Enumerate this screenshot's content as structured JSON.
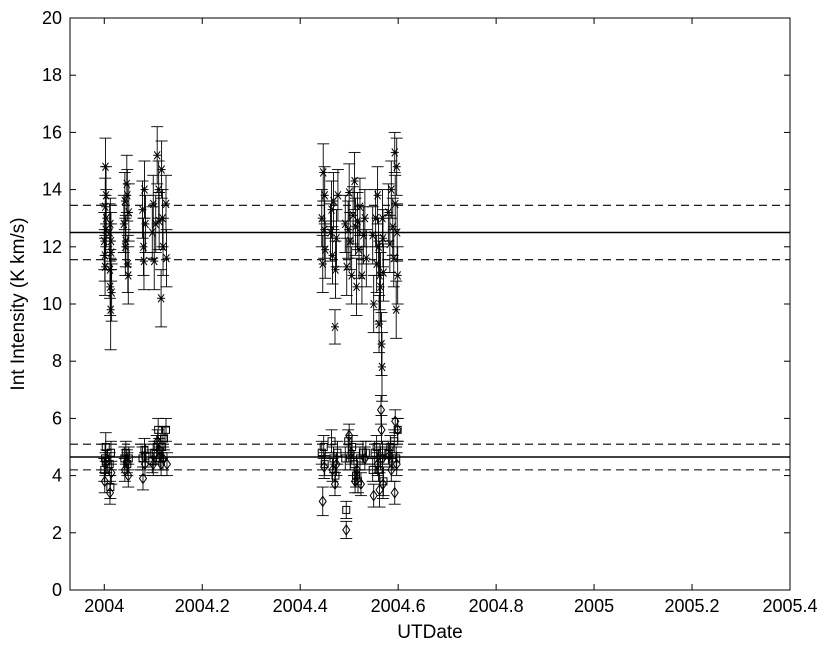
{
  "chart_data": {
    "type": "scatter",
    "title": "",
    "xlabel": "UTDate",
    "ylabel": "Int Intensity (K km/s)",
    "xlim": [
      2003.93,
      2005.4
    ],
    "ylim": [
      0,
      20
    ],
    "xticks": [
      2004,
      2004.2,
      2004.4,
      2004.6,
      2004.8,
      2005,
      2005.2,
      2005.4
    ],
    "xtick_labels": [
      "2004",
      "2004.2",
      "2004.4",
      "2004.6",
      "2004.8",
      "2005",
      "2005.2",
      "2005.4"
    ],
    "yticks": [
      0,
      2,
      4,
      6,
      8,
      10,
      12,
      14,
      16,
      18,
      20
    ],
    "ytick_labels": [
      "0",
      "2",
      "4",
      "6",
      "8",
      "10",
      "12",
      "14",
      "16",
      "18",
      "20"
    ],
    "grid": false,
    "legend": "none",
    "reference_lines": [
      {
        "group": "upper",
        "style": "solid",
        "y": 12.5
      },
      {
        "group": "upper",
        "style": "dashed",
        "y": 13.45
      },
      {
        "group": "upper",
        "style": "dashed",
        "y": 11.55
      },
      {
        "group": "lower",
        "style": "solid",
        "y": 4.65
      },
      {
        "group": "lower",
        "style": "dashed",
        "y": 5.1
      },
      {
        "group": "lower",
        "style": "dashed",
        "y": 4.2
      }
    ],
    "series": [
      {
        "marker": "asterisk",
        "points": [
          [
            1.0,
            12.2,
            1.0
          ],
          [
            1.1,
            13.4,
            1.0
          ],
          [
            1.12,
            14.8,
            1.0
          ],
          [
            1.05,
            11.7,
            0.9
          ],
          [
            1.2,
            13.0,
            1.0
          ],
          [
            1.15,
            12.6,
            0.9
          ],
          [
            1.08,
            11.3,
            1.0
          ],
          [
            1.18,
            13.8,
            1.0
          ],
          [
            1.55,
            12.5,
            1.0
          ],
          [
            1.6,
            10.6,
            1.0
          ],
          [
            1.65,
            9.8,
            1.4
          ],
          [
            1.7,
            11.8,
            1.0
          ],
          [
            1.62,
            12.8,
            0.9
          ],
          [
            1.75,
            10.4,
            1.0
          ],
          [
            1.58,
            11.2,
            1.0
          ],
          [
            1.68,
            12.2,
            1.0
          ],
          [
            3.0,
            12.8,
            1.0
          ],
          [
            3.1,
            13.6,
            1.0
          ],
          [
            3.2,
            12.2,
            0.9
          ],
          [
            3.3,
            14.2,
            1.0
          ],
          [
            3.4,
            11.4,
            1.0
          ],
          [
            3.5,
            13.2,
            1.0
          ],
          [
            3.15,
            12.0,
            1.0
          ],
          [
            3.35,
            13.8,
            0.9
          ],
          [
            3.45,
            11.0,
            1.0
          ],
          [
            4.9,
            13.3,
            1.0
          ],
          [
            5.0,
            12.0,
            1.0
          ],
          [
            5.1,
            14.0,
            1.0
          ],
          [
            5.05,
            11.5,
            1.0
          ],
          [
            5.2,
            12.8,
            1.0
          ],
          [
            5.9,
            12.5,
            0.9
          ],
          [
            6.0,
            13.5,
            1.0
          ],
          [
            6.1,
            11.5,
            1.0
          ],
          [
            6.25,
            12.8,
            1.0
          ],
          [
            6.4,
            15.2,
            1.0
          ],
          [
            6.55,
            14.0,
            1.0
          ],
          [
            6.6,
            12.9,
            1.0
          ],
          [
            6.8,
            10.2,
            1.0
          ],
          [
            6.85,
            14.7,
            1.0
          ],
          [
            6.95,
            13.0,
            1.0
          ],
          [
            7.0,
            12.0,
            1.0
          ],
          [
            7.3,
            13.5,
            1.0
          ],
          [
            7.35,
            11.6,
            1.0
          ],
          [
            23.2,
            13.0,
            1.0
          ],
          [
            23.35,
            14.6,
            1.0
          ],
          [
            23.3,
            11.4,
            1.0
          ],
          [
            23.45,
            12.6,
            1.0
          ],
          [
            23.5,
            13.8,
            1.0
          ],
          [
            23.55,
            11.9,
            1.0
          ],
          [
            24.1,
            12.5,
            1.0
          ],
          [
            24.2,
            13.3,
            1.0
          ],
          [
            24.3,
            11.7,
            1.0
          ],
          [
            24.4,
            13.6,
            1.0
          ],
          [
            24.55,
            9.2,
            0.6
          ],
          [
            24.6,
            11.2,
            1.0
          ],
          [
            24.7,
            12.3,
            1.0
          ],
          [
            24.85,
            13.8,
            0.9
          ],
          [
            25.6,
            12.8,
            1.0
          ],
          [
            25.75,
            11.3,
            1.0
          ],
          [
            25.9,
            12.6,
            1.0
          ],
          [
            26.0,
            13.9,
            1.0
          ],
          [
            26.1,
            12.2,
            1.0
          ],
          [
            26.25,
            11.0,
            1.0
          ],
          [
            26.4,
            13.1,
            1.0
          ],
          [
            26.55,
            14.3,
            1.0
          ],
          [
            26.65,
            12.7,
            1.0
          ],
          [
            26.75,
            10.6,
            1.0
          ],
          [
            26.85,
            12.9,
            1.0
          ],
          [
            27.0,
            11.9,
            1.0
          ],
          [
            27.1,
            13.4,
            1.0
          ],
          [
            27.3,
            11.0,
            1.0
          ],
          [
            27.45,
            12.4,
            1.0
          ],
          [
            27.6,
            13.0,
            1.0
          ],
          [
            27.75,
            11.6,
            1.0
          ],
          [
            28.4,
            12.4,
            1.0
          ],
          [
            28.5,
            10.0,
            1.0
          ],
          [
            28.7,
            13.0,
            1.0
          ],
          [
            28.8,
            11.4,
            1.0
          ],
          [
            28.9,
            13.8,
            1.0
          ],
          [
            29.0,
            12.0,
            1.0
          ],
          [
            29.05,
            9.3,
            1.0
          ],
          [
            29.1,
            11.0,
            1.2
          ],
          [
            29.2,
            10.6,
            1.2
          ],
          [
            29.3,
            8.6,
            1.1
          ],
          [
            29.35,
            7.8,
            1.2
          ],
          [
            29.4,
            13.0,
            1.0
          ],
          [
            29.45,
            12.3,
            1.0
          ],
          [
            29.5,
            11.1,
            1.0
          ],
          [
            30.0,
            13.2,
            1.0
          ],
          [
            30.15,
            12.1,
            1.0
          ],
          [
            30.3,
            14.0,
            1.0
          ],
          [
            30.45,
            12.7,
            1.0
          ],
          [
            30.55,
            11.6,
            1.0
          ],
          [
            30.65,
            15.3,
            0.7
          ],
          [
            30.7,
            13.5,
            1.0
          ],
          [
            30.8,
            9.8,
            1.0
          ],
          [
            30.85,
            14.8,
            1.0
          ],
          [
            30.9,
            12.5,
            1.0
          ],
          [
            30.95,
            11.0,
            1.0
          ]
        ]
      },
      {
        "marker": "square",
        "points": [
          [
            1.0,
            4.2,
            0.4
          ],
          [
            1.08,
            4.6,
            0.5
          ],
          [
            1.15,
            5.0,
            0.5
          ],
          [
            1.2,
            4.5,
            0.4
          ],
          [
            1.55,
            4.4,
            0.4
          ],
          [
            1.62,
            3.6,
            0.4
          ],
          [
            1.68,
            4.8,
            0.4
          ],
          [
            3.05,
            4.6,
            0.4
          ],
          [
            3.2,
            4.8,
            0.4
          ],
          [
            3.35,
            4.4,
            0.4
          ],
          [
            3.5,
            4.6,
            0.4
          ],
          [
            4.9,
            4.6,
            0.4
          ],
          [
            5.1,
            4.9,
            0.4
          ],
          [
            5.2,
            4.7,
            0.4
          ],
          [
            5.9,
            4.5,
            0.4
          ],
          [
            6.1,
            4.8,
            0.4
          ],
          [
            6.35,
            5.0,
            0.4
          ],
          [
            6.5,
            5.6,
            0.4
          ],
          [
            6.7,
            4.6,
            0.4
          ],
          [
            6.9,
            5.0,
            0.4
          ],
          [
            7.1,
            5.3,
            0.4
          ],
          [
            7.3,
            5.6,
            0.4
          ],
          [
            23.2,
            4.8,
            0.4
          ],
          [
            23.4,
            5.0,
            0.4
          ],
          [
            23.5,
            4.4,
            0.4
          ],
          [
            24.2,
            5.2,
            0.4
          ],
          [
            24.4,
            4.6,
            0.4
          ],
          [
            24.6,
            4.0,
            0.4
          ],
          [
            24.8,
            4.8,
            0.4
          ],
          [
            25.6,
            4.6,
            0.4
          ],
          [
            25.7,
            2.8,
            0.3
          ],
          [
            25.9,
            5.2,
            0.4
          ],
          [
            26.1,
            4.6,
            0.4
          ],
          [
            26.3,
            5.0,
            0.4
          ],
          [
            26.5,
            4.4,
            0.4
          ],
          [
            26.7,
            4.0,
            0.4
          ],
          [
            26.9,
            3.8,
            0.4
          ],
          [
            27.1,
            4.6,
            0.4
          ],
          [
            27.4,
            4.8,
            0.4
          ],
          [
            27.7,
            4.8,
            0.4
          ],
          [
            28.4,
            4.2,
            0.4
          ],
          [
            28.6,
            4.8,
            0.4
          ],
          [
            28.8,
            5.0,
            0.4
          ],
          [
            29.0,
            4.2,
            0.4
          ],
          [
            29.2,
            4.6,
            0.4
          ],
          [
            29.4,
            4.8,
            0.4
          ],
          [
            29.5,
            3.8,
            0.5
          ],
          [
            30.0,
            4.8,
            0.4
          ],
          [
            30.2,
            5.0,
            0.4
          ],
          [
            30.4,
            4.6,
            0.4
          ],
          [
            30.6,
            5.2,
            0.4
          ],
          [
            30.8,
            4.6,
            0.4
          ],
          [
            30.95,
            5.6,
            0.4
          ]
        ]
      },
      {
        "marker": "diamond",
        "points": [
          [
            1.05,
            3.8,
            0.4
          ],
          [
            1.12,
            4.4,
            0.4
          ],
          [
            1.58,
            3.4,
            0.4
          ],
          [
            1.72,
            4.1,
            0.4
          ],
          [
            3.1,
            4.2,
            0.4
          ],
          [
            3.3,
            4.5,
            0.4
          ],
          [
            3.45,
            4.0,
            0.4
          ],
          [
            4.95,
            3.9,
            0.4
          ],
          [
            5.15,
            4.4,
            0.4
          ],
          [
            6.0,
            4.4,
            0.4
          ],
          [
            6.45,
            5.2,
            0.4
          ],
          [
            6.6,
            4.9,
            0.4
          ],
          [
            6.8,
            4.4,
            0.4
          ],
          [
            7.0,
            4.6,
            0.4
          ],
          [
            7.4,
            4.4,
            0.4
          ],
          [
            23.3,
            3.1,
            0.5
          ],
          [
            23.45,
            4.3,
            0.4
          ],
          [
            24.3,
            4.2,
            0.4
          ],
          [
            24.55,
            3.7,
            0.4
          ],
          [
            24.7,
            4.4,
            0.4
          ],
          [
            25.7,
            2.1,
            0.3
          ],
          [
            26.0,
            5.4,
            0.4
          ],
          [
            26.2,
            4.8,
            0.4
          ],
          [
            26.6,
            3.8,
            0.4
          ],
          [
            26.8,
            4.2,
            0.4
          ],
          [
            27.2,
            3.7,
            0.4
          ],
          [
            27.6,
            4.6,
            0.4
          ],
          [
            28.5,
            3.3,
            0.4
          ],
          [
            28.9,
            4.4,
            0.4
          ],
          [
            29.1,
            3.5,
            0.6
          ],
          [
            29.25,
            6.3,
            0.5
          ],
          [
            29.3,
            5.6,
            0.5
          ],
          [
            29.4,
            4.6,
            0.4
          ],
          [
            29.45,
            3.7,
            0.5
          ],
          [
            30.1,
            4.7,
            0.4
          ],
          [
            30.3,
            4.2,
            0.4
          ],
          [
            30.65,
            3.4,
            0.4
          ],
          [
            30.7,
            5.9,
            0.4
          ],
          [
            30.85,
            4.4,
            0.4
          ],
          [
            30.95,
            5.6,
            0.4
          ]
        ]
      }
    ]
  }
}
